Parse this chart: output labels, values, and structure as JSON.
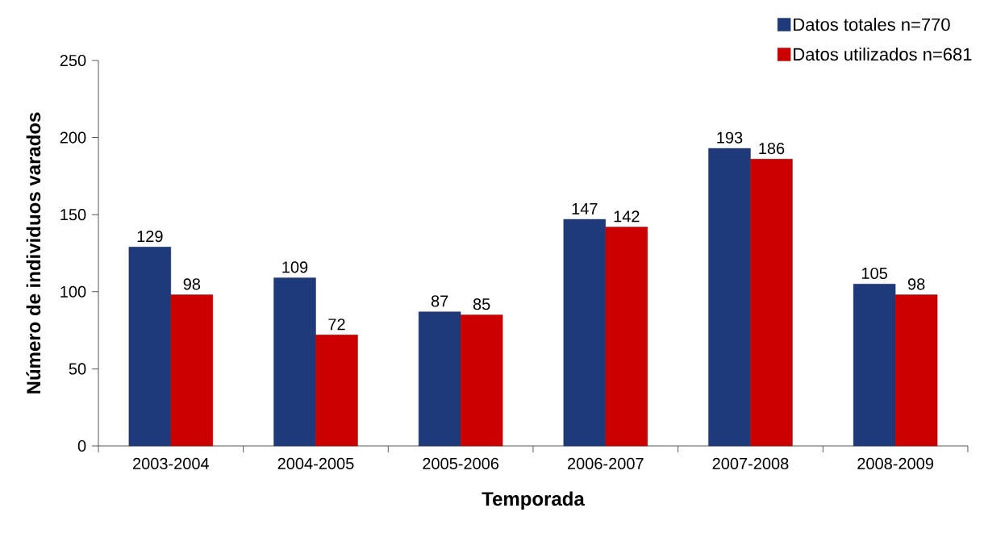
{
  "chart_data": {
    "type": "bar",
    "xlabel": "Temporada",
    "ylabel": "Número de individuos varados",
    "categories": [
      "2003-2004",
      "2004-2005",
      "2005-2006",
      "2006-2007",
      "2007-2008",
      "2008-2009"
    ],
    "series": [
      {
        "name": "Datos totales n=770",
        "color": "#1f3a7a",
        "values": [
          129,
          109,
          87,
          147,
          193,
          105
        ]
      },
      {
        "name": "Datos utilizados n=681",
        "color": "#cc0000",
        "values": [
          98,
          72,
          85,
          142,
          186,
          98
        ]
      }
    ],
    "ylim": [
      0,
      250
    ],
    "yticks": [
      0,
      50,
      100,
      150,
      200,
      250
    ],
    "grid": false,
    "legend": "top right",
    "data_labels": true
  }
}
